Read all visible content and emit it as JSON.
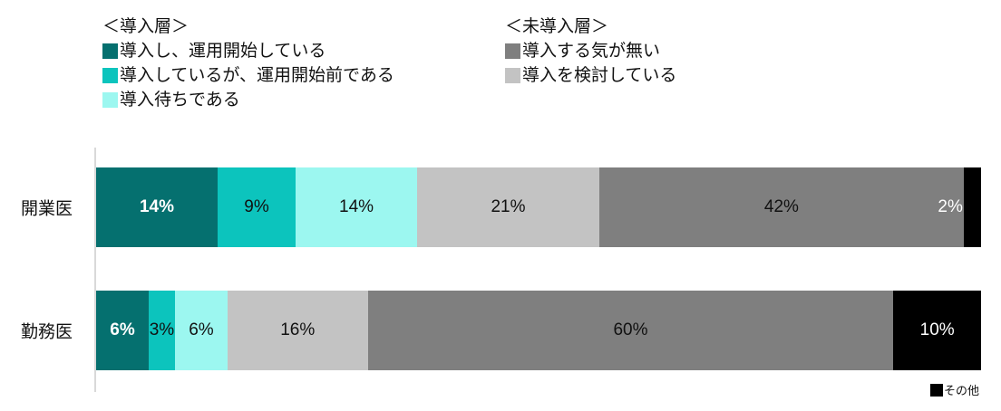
{
  "legend": {
    "groups": [
      {
        "title": "＜導入層＞",
        "items": [
          {
            "label": "導入し、運用開始している",
            "color": "#05706f"
          },
          {
            "label": "導入しているが、運用開始前である",
            "color": "#0cc4bd"
          },
          {
            "label": "導入待ちである",
            "color": "#9cf7f0"
          }
        ]
      },
      {
        "title": "＜未導入層＞",
        "items": [
          {
            "label": "導入する気が無い",
            "color": "#7f7f7f"
          },
          {
            "label": "導入を検討している",
            "color": "#c3c3c3"
          }
        ]
      }
    ],
    "other": {
      "label": "その他",
      "color": "#000000"
    }
  },
  "chart_data": {
    "type": "bar",
    "stacked": true,
    "orientation": "horizontal",
    "unit": "%",
    "grid": false,
    "axis_color": "#d9d9d9",
    "categories": [
      "開業医",
      "勤務医"
    ],
    "series": [
      {
        "name": "導入し、運用開始している",
        "color": "#05706f",
        "label_color": "#ffffff",
        "label_bold": true,
        "values": [
          14,
          6
        ]
      },
      {
        "name": "導入しているが、運用開始前である",
        "color": "#0cc4bd",
        "label_color": "#111111",
        "label_bold": false,
        "values": [
          9,
          3
        ]
      },
      {
        "name": "導入待ちである",
        "color": "#9cf7f0",
        "label_color": "#111111",
        "label_bold": false,
        "values": [
          14,
          6
        ]
      },
      {
        "name": "導入を検討している",
        "color": "#c3c3c3",
        "label_color": "#111111",
        "label_bold": false,
        "values": [
          21,
          16
        ]
      },
      {
        "name": "導入する気が無い",
        "color": "#7f7f7f",
        "label_color": "#111111",
        "label_bold": false,
        "values": [
          42,
          60
        ]
      },
      {
        "name": "その他",
        "color": "#000000",
        "label_color": "#ffffff",
        "label_bold": false,
        "values": [
          2,
          10
        ]
      }
    ],
    "xlim": [
      0,
      100
    ],
    "legend_position": "top"
  }
}
